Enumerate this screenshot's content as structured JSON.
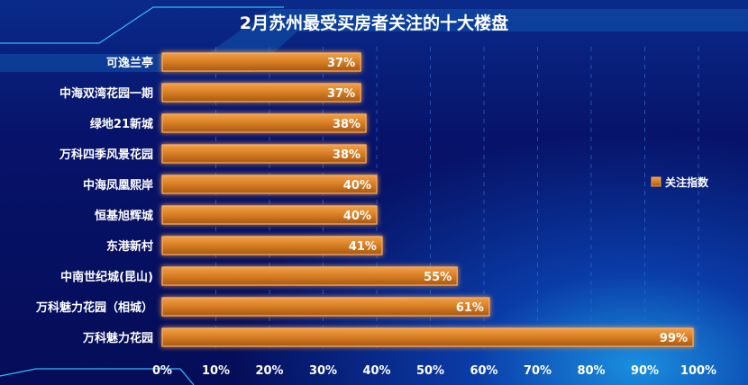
{
  "chart_data": {
    "type": "bar",
    "orientation": "horizontal",
    "title": "2月苏州最受买房者关注的十大楼盘",
    "categories": [
      "可逸兰亭",
      "中海双湾花园一期",
      "绿地21新城",
      "万科四季风景花园",
      "中海凤凰熙岸",
      "恒基旭辉城",
      "东港新村",
      "中南世纪城(昆山)",
      "万科魅力花园（相城）",
      "万科魅力花园"
    ],
    "series": [
      {
        "name": "关注指数",
        "values": [
          37,
          37,
          38,
          38,
          40,
          40,
          41,
          55,
          61,
          99
        ]
      }
    ],
    "value_labels": [
      "37%",
      "37%",
      "38%",
      "38%",
      "40%",
      "40%",
      "41%",
      "55%",
      "61%",
      "99%"
    ],
    "xticks": [
      "0%",
      "10%",
      "20%",
      "30%",
      "40%",
      "50%",
      "60%",
      "70%",
      "80%",
      "90%",
      "100%"
    ],
    "xlim": [
      0,
      100
    ],
    "xlabel": "",
    "ylabel": "",
    "grid": "vertical dashed",
    "legend": "right",
    "colors": {
      "bar": "#e98d2c",
      "bar_dark": "#b35e12",
      "grid": "#2a6bd0"
    }
  }
}
